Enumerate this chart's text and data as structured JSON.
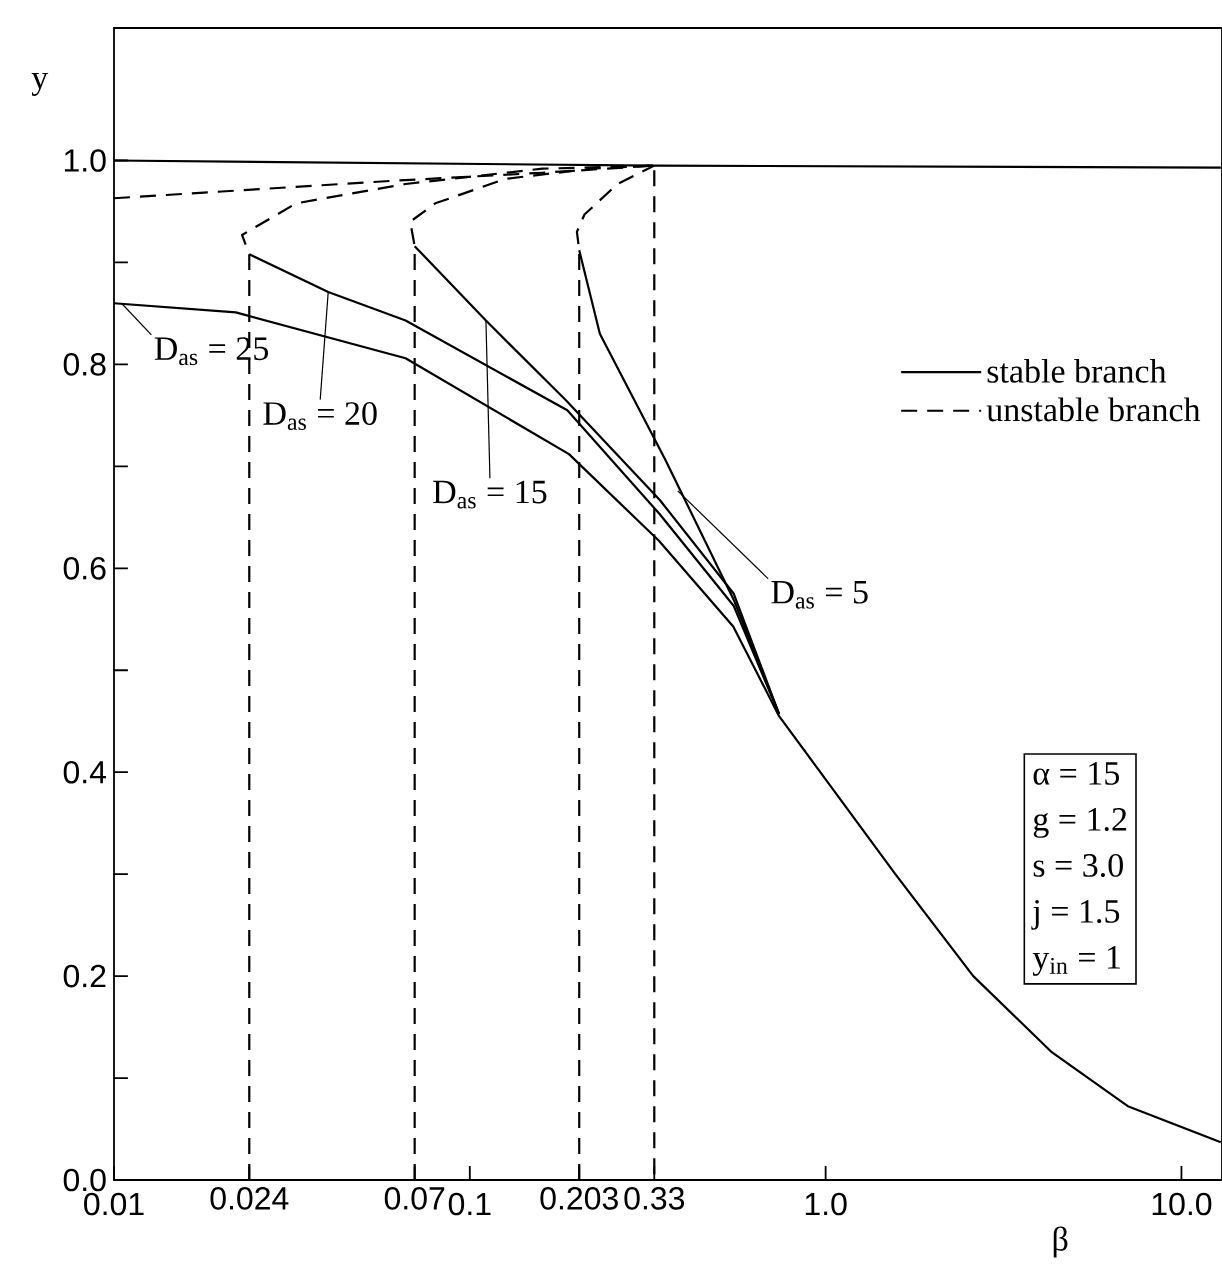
{
  "chart_data": {
    "type": "line",
    "xlabel": "β",
    "ylabel": "y",
    "log": "x",
    "marker": "none",
    "legend": "top right",
    "xlim": [
      0.01,
      13
    ],
    "ylim": [
      0,
      1.13
    ],
    "xticks": [
      0.01,
      0.024,
      0.07,
      0.1,
      0.203,
      0.33,
      {
        "value": 1,
        "label": "1.0"
      },
      {
        "value": 10,
        "label": "10.0"
      }
    ],
    "yticks": [
      {
        "value": 0,
        "label": "0.0"
      },
      {
        "value": 0.1,
        "label": null
      },
      0.2,
      {
        "value": 0.3,
        "label": null
      },
      0.4,
      {
        "value": 0.5,
        "label": null
      },
      0.6,
      {
        "value": 0.7,
        "label": null
      },
      0.8,
      {
        "value": 0.9,
        "label": null
      },
      {
        "value": 1,
        "label": "1.0"
      }
    ],
    "series": [
      {
        "name": "stable branch",
        "color": "#000000",
        "line_style": "solid",
        "x": [
          0.01,
          0.33,
          12.9
        ],
        "values": [
          1.0,
          0.995,
          0.993
        ]
      },
      {
        "name": "unstable branch",
        "color": "#000000",
        "line_style": "dashed",
        "x": [
          0.01,
          0.06,
          0.16,
          0.33,
          0.33
        ],
        "values": [
          0.963,
          0.98,
          0.988,
          0.995,
          0
        ]
      },
      {
        "color": "#000000",
        "line_style": "solid",
        "x": [
          0.01,
          0.022,
          0.066,
          0.19,
          0.34,
          0.55,
          0.74,
          1.0,
          1.57,
          2.6,
          4.3,
          7.1,
          12.9
        ],
        "values": [
          0.86,
          0.851,
          0.806,
          0.712,
          0.627,
          0.543,
          0.455,
          0.393,
          0.3,
          0.2,
          0.126,
          0.072,
          0.037
        ]
      },
      {
        "color": "#000000",
        "line_style": "dashed",
        "x": [
          0.024,
          0.024,
          0.0229,
          0.0325,
          0.066,
          0.16,
          0.33
        ],
        "values": [
          0,
          0.908,
          0.927,
          0.958,
          0.977,
          0.992,
          0.995
        ]
      },
      {
        "color": "#000000",
        "line_style": "solid",
        "x": [
          0.024,
          0.04,
          0.066,
          0.188,
          0.342,
          0.552,
          0.74
        ],
        "values": [
          0.908,
          0.871,
          0.843,
          0.755,
          0.653,
          0.563,
          0.457
        ]
      },
      {
        "color": "#000000",
        "line_style": "dashed",
        "x": [
          0.07,
          0.07,
          0.068,
          0.08,
          0.126,
          0.22,
          0.33
        ],
        "values": [
          0,
          0.916,
          0.94,
          0.958,
          0.982,
          0.992,
          0.995
        ]
      },
      {
        "color": "#000000",
        "line_style": "solid",
        "x": [
          0.07,
          0.111,
          0.186,
          0.342,
          0.552,
          0.74
        ],
        "values": [
          0.916,
          0.843,
          0.765,
          0.667,
          0.575,
          0.457
        ]
      },
      {
        "color": "#000000",
        "line_style": "dashed",
        "x": [
          0.203,
          0.203,
          0.2,
          0.21,
          0.26,
          0.33
        ],
        "values": [
          0,
          0.912,
          0.93,
          0.947,
          0.977,
          0.995
        ]
      },
      {
        "color": "#000000",
        "line_style": "solid",
        "x": [
          0.203,
          0.232,
          0.355,
          0.552,
          0.74
        ],
        "values": [
          0.912,
          0.83,
          0.706,
          0.569,
          0.457
        ]
      }
    ],
    "annotations": [
      {
        "text": "D$_{as}$ = 25",
        "x": 0.0105,
        "y": 0.86
      },
      {
        "text": "D$_{as}$ = 20",
        "x": 0.04,
        "y": 0.871
      },
      {
        "text": "D$_{as}$ = 15",
        "x": 0.111,
        "y": 0.843
      },
      {
        "text": "D$_{as}$ = 5",
        "x": 0.384,
        "y": 0.676
      },
      "α = 15",
      "g = 1.2",
      "s = 3.0",
      "j = 1.5",
      "y$_{in}$ = 1"
    ]
  }
}
